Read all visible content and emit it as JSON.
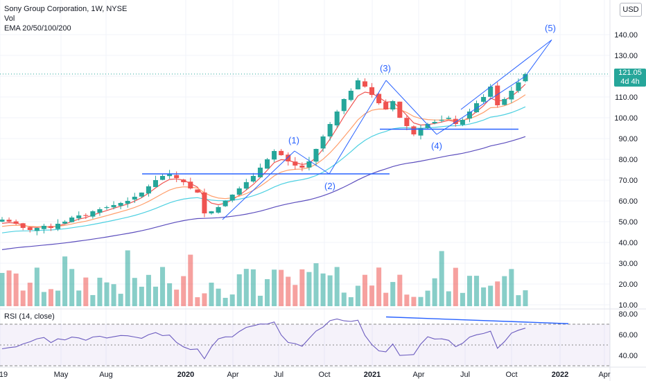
{
  "legend": {
    "title": "Sony Group Corporation, 1W, NYSE",
    "vol": "Vol",
    "ema": "EMA 20/50/100/200"
  },
  "rsi_label": "RSI (14, close)",
  "currency": "USD",
  "last_price": {
    "value": "121.05",
    "countdown": "4d 4h"
  },
  "colors": {
    "up": "#26a69a",
    "down": "#ef5350",
    "ema20": "#ef5350",
    "ema50": "#ff9e6b",
    "ema100": "#4dd0e1",
    "ema200": "#5b4dbd",
    "drawing": "#2962ff",
    "rsi": "#6b5bbf"
  },
  "chart_data": [
    {
      "type": "candlestick",
      "title": "Sony Group Corporation, 1W, NYSE",
      "ylim": [
        10,
        155
      ],
      "y_ticks": [
        "140.00",
        "130.00",
        "120.00",
        "110.00",
        "100.00",
        "90.00",
        "80.00",
        "70.00",
        "60.00",
        "50.00",
        "40.00",
        "30.00",
        "20.00",
        "10.00"
      ],
      "x_ticks": [
        "19",
        "May",
        "Aug",
        "2020",
        "Apr",
        "Jul",
        "Oct",
        "2021",
        "Apr",
        "Jul",
        "Oct",
        "2022",
        "Apr"
      ],
      "weekly_close_approx": [
        51,
        50,
        49,
        47,
        46,
        47,
        48,
        47,
        49,
        50,
        52,
        53,
        53,
        55,
        56,
        57,
        58,
        59,
        60,
        62,
        64,
        67,
        70,
        72,
        73,
        71,
        69,
        66,
        64,
        54,
        55,
        57,
        60,
        63,
        66,
        69,
        72,
        76,
        80,
        84,
        82,
        79,
        77,
        76,
        79,
        85,
        91,
        97,
        103,
        109,
        113,
        118,
        115,
        111,
        107,
        104,
        108,
        100,
        96,
        92,
        95,
        97,
        98,
        99,
        100,
        97,
        99,
        103,
        107,
        110,
        115,
        106,
        109,
        113,
        117,
        121
      ],
      "annotations": [
        "(1)",
        "(2)",
        "(3)",
        "(4)",
        "(5)"
      ],
      "horizontal_levels": [
        73,
        94.5
      ],
      "ema_series": [
        "EMA 20",
        "EMA 50",
        "EMA 100",
        "EMA 200"
      ],
      "last_price": 121.05
    },
    {
      "type": "line",
      "title": "RSI (14, close)",
      "ylim": [
        25,
        85
      ],
      "y_ticks": [
        "80.00",
        "60.00",
        "40.00"
      ],
      "levels": [
        70,
        50,
        30
      ]
    }
  ]
}
